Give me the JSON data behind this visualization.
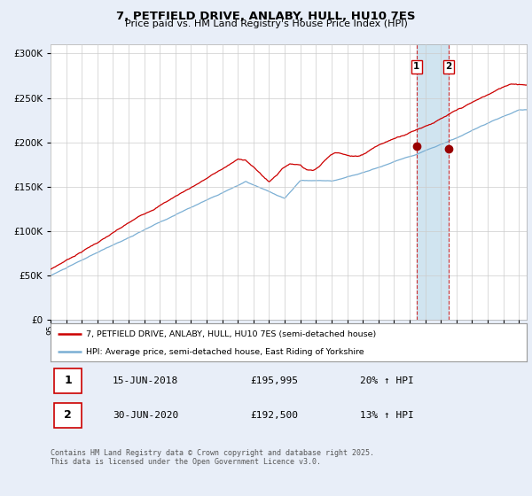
{
  "title_line1": "7, PETFIELD DRIVE, ANLABY, HULL, HU10 7ES",
  "title_line2": "Price paid vs. HM Land Registry's House Price Index (HPI)",
  "ylim": [
    0,
    310000
  ],
  "xlim_start": 1995.0,
  "xlim_end": 2025.5,
  "house_color": "#cc0000",
  "hpi_color": "#7bafd4",
  "marker1_date": 2018.45,
  "marker1_price": 195995,
  "marker2_date": 2020.5,
  "marker2_price": 192500,
  "sale1_date_str": "15-JUN-2018",
  "sale1_price_str": "£195,995",
  "sale1_hpi_str": "20% ↑ HPI",
  "sale2_date_str": "30-JUN-2020",
  "sale2_price_str": "£192,500",
  "sale2_hpi_str": "13% ↑ HPI",
  "legend1_label": "7, PETFIELD DRIVE, ANLABY, HULL, HU10 7ES (semi-detached house)",
  "legend2_label": "HPI: Average price, semi-detached house, East Riding of Yorkshire",
  "footnote": "Contains HM Land Registry data © Crown copyright and database right 2025.\nThis data is licensed under the Open Government Licence v3.0.",
  "background_color": "#e8eef8",
  "plot_bg_color": "#ffffff",
  "grid_color": "#cccccc",
  "span_color": "#d0e4f0"
}
